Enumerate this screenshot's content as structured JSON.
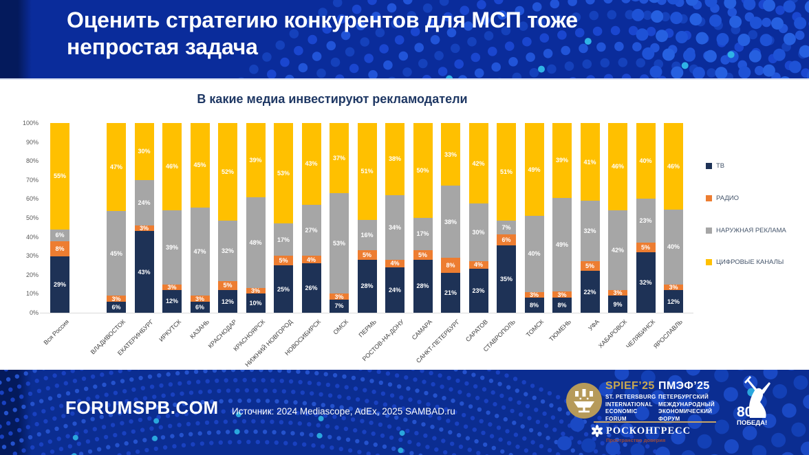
{
  "header": {
    "title": "Оценить стратегию конкурентов для МСП тоже\nнепростая задача"
  },
  "chart_data": {
    "type": "bar",
    "stacked": true,
    "units": "%",
    "title": "В какие медиа инвестируют рекламодатели",
    "xlabel": "",
    "ylabel": "",
    "ylim": [
      0,
      100
    ],
    "grid": false,
    "legend_position": "right",
    "y_ticks": [
      "0%",
      "10%",
      "20%",
      "30%",
      "40%",
      "50%",
      "60%",
      "70%",
      "80%",
      "90%",
      "100%"
    ],
    "categories": [
      "Вся Россия",
      "ВЛАДИВОСТОК",
      "ЕКАТЕРИНБУРГ",
      "ИРКУТСК",
      "КАЗАНЬ",
      "КРАСНОДАР",
      "КРАСНОЯРСК",
      "НИЖНИЙ НОВГОРОД",
      "НОВОСИБИРСК",
      "ОМСК",
      "ПЕРМЬ",
      "РОСТОВ-НА-ДОНУ",
      "САМАРА",
      "САНКТ-ПЕТЕРБУРГ",
      "САРАТОВ",
      "СТАВРОПОЛЬ",
      "ТОМСК",
      "ТЮМЕНЬ",
      "УФА",
      "ХАБАРОВСК",
      "ЧЕЛЯБИНСК",
      "ЯРОСЛАВЛЬ"
    ],
    "series": [
      {
        "name": "ТВ",
        "color": "#1e3256",
        "values": [
          29,
          6,
          43,
          12,
          6,
          12,
          10,
          25,
          26,
          7,
          28,
          24,
          28,
          21,
          23,
          35,
          8,
          8,
          22,
          9,
          32,
          12
        ]
      },
      {
        "name": "РАДИО",
        "color": "#ed7d31",
        "values": [
          8,
          3,
          3,
          3,
          3,
          5,
          3,
          5,
          4,
          3,
          5,
          4,
          5,
          8,
          4,
          6,
          3,
          3,
          5,
          3,
          5,
          3
        ]
      },
      {
        "name": "НАРУЖНАЯ РЕКЛАМА",
        "color": "#a6a6a6",
        "values": [
          6,
          45,
          24,
          39,
          47,
          32,
          48,
          17,
          27,
          53,
          16,
          34,
          17,
          38,
          30,
          7,
          40,
          49,
          32,
          42,
          23,
          40
        ]
      },
      {
        "name": "ЦИФРОВЫЕ КАНАЛЫ",
        "color": "#ffc000",
        "values": [
          55,
          47,
          30,
          46,
          45,
          52,
          39,
          53,
          43,
          37,
          51,
          38,
          50,
          33,
          42,
          51,
          49,
          39,
          41,
          46,
          40,
          46
        ]
      }
    ]
  },
  "footer": {
    "site": "FORUMSPB.COM",
    "source": "Источник:  2024 Mediascope, AdEx, 2025 SAMBAD.ru",
    "spief": {
      "en_title": "SPIEF’25",
      "en_subtitle": "ST. PETERSBURG\nINTERNATIONAL\nECONOMIC\nFORUM",
      "ru_title": "ПМЭФ’25",
      "ru_subtitle": "ПЕТЕРБУРГСКИЙ\nМЕЖДУНАРОДНЫЙ\nЭКОНОМИЧЕСКИЙ\nФОРУМ",
      "org": "РОСКОНГРЕСС",
      "tagline": "Пространство доверия"
    },
    "victory": {
      "number": "80",
      "label": "ПОБЕДА!"
    }
  }
}
